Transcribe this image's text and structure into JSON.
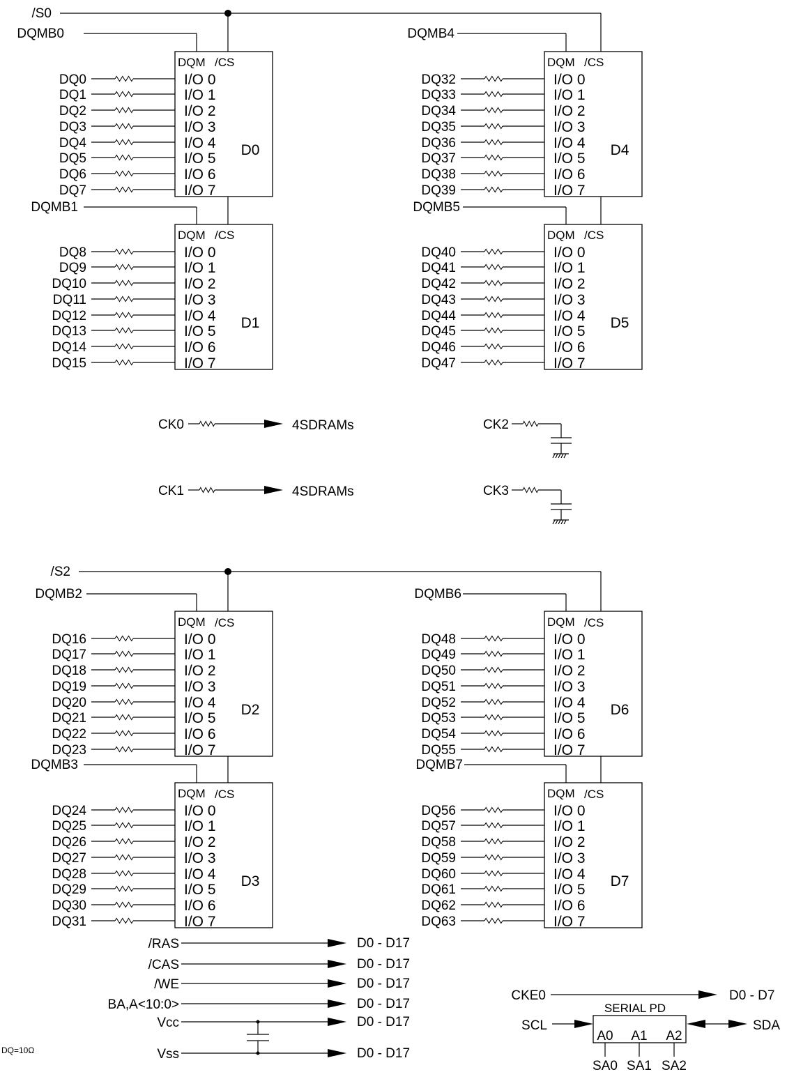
{
  "groups": [
    {
      "select": "/S0",
      "chips": [
        {
          "name": "D0",
          "dqmb": "DQMB0",
          "dq": [
            "DQ0",
            "DQ1",
            "DQ2",
            "DQ3",
            "DQ4",
            "DQ5",
            "DQ6",
            "DQ7"
          ]
        },
        {
          "name": "D1",
          "dqmb": "DQMB1",
          "dq": [
            "DQ8",
            "DQ9",
            "DQ10",
            "DQ11",
            "DQ12",
            "DQ13",
            "DQ14",
            "DQ15"
          ]
        },
        {
          "name": "D4",
          "dqmb": "DQMB4",
          "dq": [
            "DQ32",
            "DQ33",
            "DQ34",
            "DQ35",
            "DQ36",
            "DQ37",
            "DQ38",
            "DQ39"
          ]
        },
        {
          "name": "D5",
          "dqmb": "DQMB5",
          "dq": [
            "DQ40",
            "DQ41",
            "DQ42",
            "DQ43",
            "DQ44",
            "DQ45",
            "DQ46",
            "DQ47"
          ]
        }
      ]
    },
    {
      "select": "/S2",
      "chips": [
        {
          "name": "D2",
          "dqmb": "DQMB2",
          "dq": [
            "DQ16",
            "DQ17",
            "DQ18",
            "DQ19",
            "DQ20",
            "DQ21",
            "DQ22",
            "DQ23"
          ]
        },
        {
          "name": "D3",
          "dqmb": "DQMB3",
          "dq": [
            "DQ24",
            "DQ25",
            "DQ26",
            "DQ27",
            "DQ28",
            "DQ29",
            "DQ30",
            "DQ31"
          ]
        },
        {
          "name": "D6",
          "dqmb": "DQMB6",
          "dq": [
            "DQ48",
            "DQ49",
            "DQ50",
            "DQ51",
            "DQ52",
            "DQ53",
            "DQ54",
            "DQ55"
          ]
        },
        {
          "name": "D7",
          "dqmb": "DQMB7",
          "dq": [
            "DQ56",
            "DQ57",
            "DQ58",
            "DQ59",
            "DQ60",
            "DQ61",
            "DQ62",
            "DQ63"
          ]
        }
      ]
    }
  ],
  "chip_pins": {
    "dqm": "DQM",
    "cs": "/CS",
    "io": [
      "I/O 0",
      "I/O 1",
      "I/O 2",
      "I/O 3",
      "I/O 4",
      "I/O 5",
      "I/O 6",
      "I/O 7"
    ]
  },
  "clocks": [
    {
      "label": "CK0",
      "target": "4SDRAMs"
    },
    {
      "label": "CK1",
      "target": "4SDRAMs"
    },
    {
      "label": "CK2"
    },
    {
      "label": "CK3"
    }
  ],
  "buses": [
    {
      "label": "/RAS",
      "target": "D0 - D17"
    },
    {
      "label": "/CAS",
      "target": "D0 - D17"
    },
    {
      "label": "/WE",
      "target": "D0 - D17"
    },
    {
      "label": "BA,A<10:0>",
      "target": "D0 - D17"
    },
    {
      "label": "Vcc",
      "target": "D0 - D17"
    },
    {
      "label": "Vss",
      "target": "D0 - D17"
    }
  ],
  "cke": {
    "label": "CKE0",
    "target": "D0 - D7"
  },
  "serial_pd": {
    "title": "SERIAL PD",
    "scl": "SCL",
    "sda": "SDA",
    "pins": [
      "A0",
      "A1",
      "A2"
    ],
    "addr": [
      "SA0",
      "SA1",
      "SA2"
    ]
  },
  "note": "DQ=10Ω"
}
